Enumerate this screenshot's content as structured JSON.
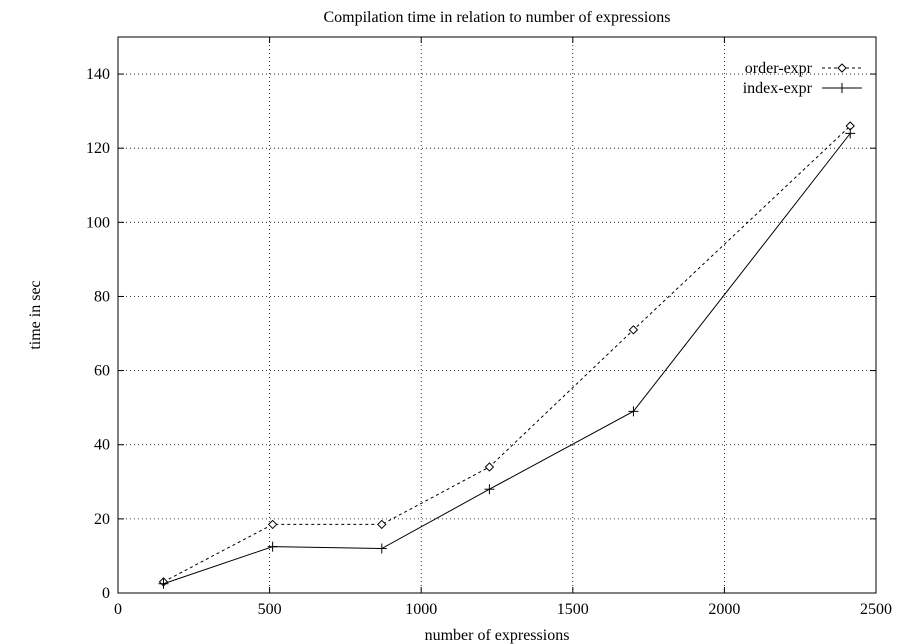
{
  "chart_data": {
    "type": "line",
    "title": "Compilation time in relation to number of expressions",
    "xlabel": "number of expressions",
    "ylabel": "time in sec",
    "xlim": [
      0,
      2500
    ],
    "ylim": [
      0,
      150
    ],
    "xticks": [
      0,
      500,
      1000,
      1500,
      2000,
      2500
    ],
    "yticks": [
      0,
      20,
      40,
      60,
      80,
      100,
      120,
      140
    ],
    "grid": true,
    "legend_position": "top-right",
    "series": [
      {
        "name": "order-expr",
        "line_style": "dashed",
        "marker": "diamond",
        "x": [
          150,
          510,
          870,
          1225,
          1700,
          2415
        ],
        "y": [
          3,
          18.5,
          18.5,
          34,
          71,
          126
        ]
      },
      {
        "name": "index-expr",
        "line_style": "solid",
        "marker": "plus",
        "x": [
          150,
          510,
          870,
          1225,
          1700,
          2415
        ],
        "y": [
          2.5,
          12.5,
          12,
          28,
          49,
          124
        ]
      }
    ]
  }
}
